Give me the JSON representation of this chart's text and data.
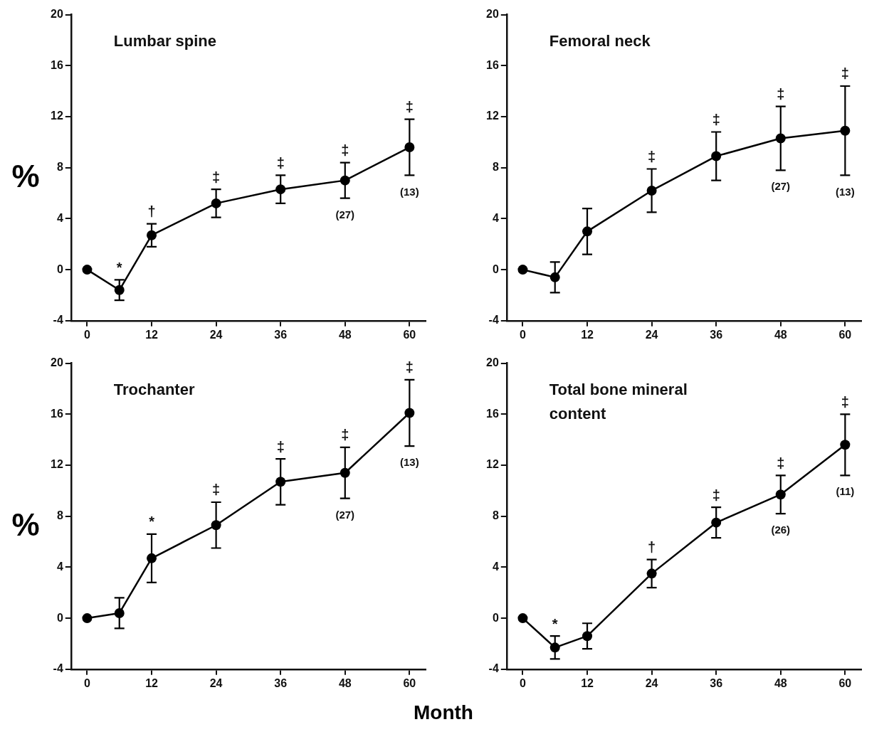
{
  "chart_data": [
    {
      "type": "line",
      "title": "Lumbar spine",
      "ylabel": "%",
      "x": [
        0,
        6,
        12,
        24,
        36,
        48,
        60
      ],
      "series": [
        {
          "color": "#000000",
          "values": [
            0,
            -1.6,
            2.7,
            5.2,
            6.3,
            7.0,
            9.6
          ],
          "errors": [
            null,
            0.8,
            0.9,
            1.1,
            1.1,
            1.4,
            2.2
          ]
        }
      ],
      "xlim": [
        -3,
        63
      ],
      "xticks": [
        0,
        12,
        24,
        36,
        48,
        60
      ],
      "ylim": [
        -4,
        20
      ],
      "yticks": [
        -4,
        0,
        4,
        8,
        12,
        16,
        20
      ],
      "marker": "circle",
      "annotations": [
        {
          "text": "*",
          "x": 6,
          "y": -0.8
        },
        {
          "text": "†",
          "x": 12,
          "y": 3.6
        },
        {
          "text": "‡",
          "x": 24,
          "y": 6.3
        },
        {
          "text": "‡",
          "x": 36,
          "y": 7.4
        },
        {
          "text": "‡",
          "x": 48,
          "y": 8.4
        },
        {
          "text": "‡",
          "x": 60,
          "y": 11.8
        },
        "(27)",
        "(13)"
      ]
    },
    {
      "type": "line",
      "title": "Femoral neck",
      "x": [
        0,
        6,
        12,
        24,
        36,
        48,
        60
      ],
      "series": [
        {
          "color": "#000000",
          "values": [
            0,
            -0.6,
            3.0,
            6.2,
            8.9,
            10.3,
            10.9
          ],
          "errors": [
            null,
            1.2,
            1.8,
            1.7,
            1.9,
            2.5,
            3.5
          ]
        }
      ],
      "xlim": [
        -3,
        63
      ],
      "xticks": [
        0,
        12,
        24,
        36,
        48,
        60
      ],
      "ylim": [
        -4,
        20
      ],
      "yticks": [
        -4,
        0,
        4,
        8,
        12,
        16,
        20
      ],
      "marker": "circle",
      "annotations": [
        {
          "text": "‡",
          "x": 24,
          "y": 7.9
        },
        {
          "text": "‡",
          "x": 36,
          "y": 10.8
        },
        {
          "text": "‡",
          "x": 48,
          "y": 12.8
        },
        {
          "text": "‡",
          "x": 60,
          "y": 14.4
        },
        "(27)",
        "(13)"
      ]
    },
    {
      "type": "line",
      "title": "Trochanter",
      "ylabel": "%",
      "xlabel": "Month",
      "x": [
        0,
        6,
        12,
        24,
        36,
        48,
        60
      ],
      "series": [
        {
          "color": "#000000",
          "values": [
            0,
            0.4,
            4.7,
            7.3,
            10.7,
            11.4,
            16.1
          ],
          "errors": [
            null,
            1.2,
            1.9,
            1.8,
            1.8,
            2.0,
            2.6
          ]
        }
      ],
      "xlim": [
        -3,
        63
      ],
      "xticks": [
        0,
        12,
        24,
        36,
        48,
        60
      ],
      "ylim": [
        -4,
        20
      ],
      "yticks": [
        -4,
        0,
        4,
        8,
        12,
        16,
        20
      ],
      "marker": "circle",
      "annotations": [
        {
          "text": "*",
          "x": 12,
          "y": 6.6
        },
        {
          "text": "‡",
          "x": 24,
          "y": 9.1
        },
        {
          "text": "‡",
          "x": 36,
          "y": 12.5
        },
        {
          "text": "‡",
          "x": 48,
          "y": 13.4
        },
        {
          "text": "‡",
          "x": 60,
          "y": 18.7
        },
        "(27)",
        "(13)"
      ]
    },
    {
      "type": "line",
      "title": "Total bone mineral content",
      "x": [
        0,
        6,
        12,
        24,
        36,
        48,
        60
      ],
      "series": [
        {
          "color": "#000000",
          "values": [
            0,
            -2.3,
            -1.4,
            3.5,
            7.5,
            9.7,
            13.6
          ],
          "errors": [
            null,
            0.9,
            1.0,
            1.1,
            1.2,
            1.5,
            2.4
          ]
        }
      ],
      "xlim": [
        -3,
        63
      ],
      "xticks": [
        0,
        12,
        24,
        36,
        48,
        60
      ],
      "ylim": [
        -4,
        20
      ],
      "yticks": [
        -4,
        0,
        4,
        8,
        12,
        16,
        20
      ],
      "marker": "circle",
      "annotations": [
        {
          "text": "*",
          "x": 6,
          "y": -1.4
        },
        {
          "text": "†",
          "x": 24,
          "y": 4.6
        },
        {
          "text": "‡",
          "x": 36,
          "y": 8.7
        },
        {
          "text": "‡",
          "x": 48,
          "y": 11.2
        },
        {
          "text": "‡",
          "x": 60,
          "y": 16.0
        },
        "(26)",
        "(11)"
      ]
    }
  ]
}
